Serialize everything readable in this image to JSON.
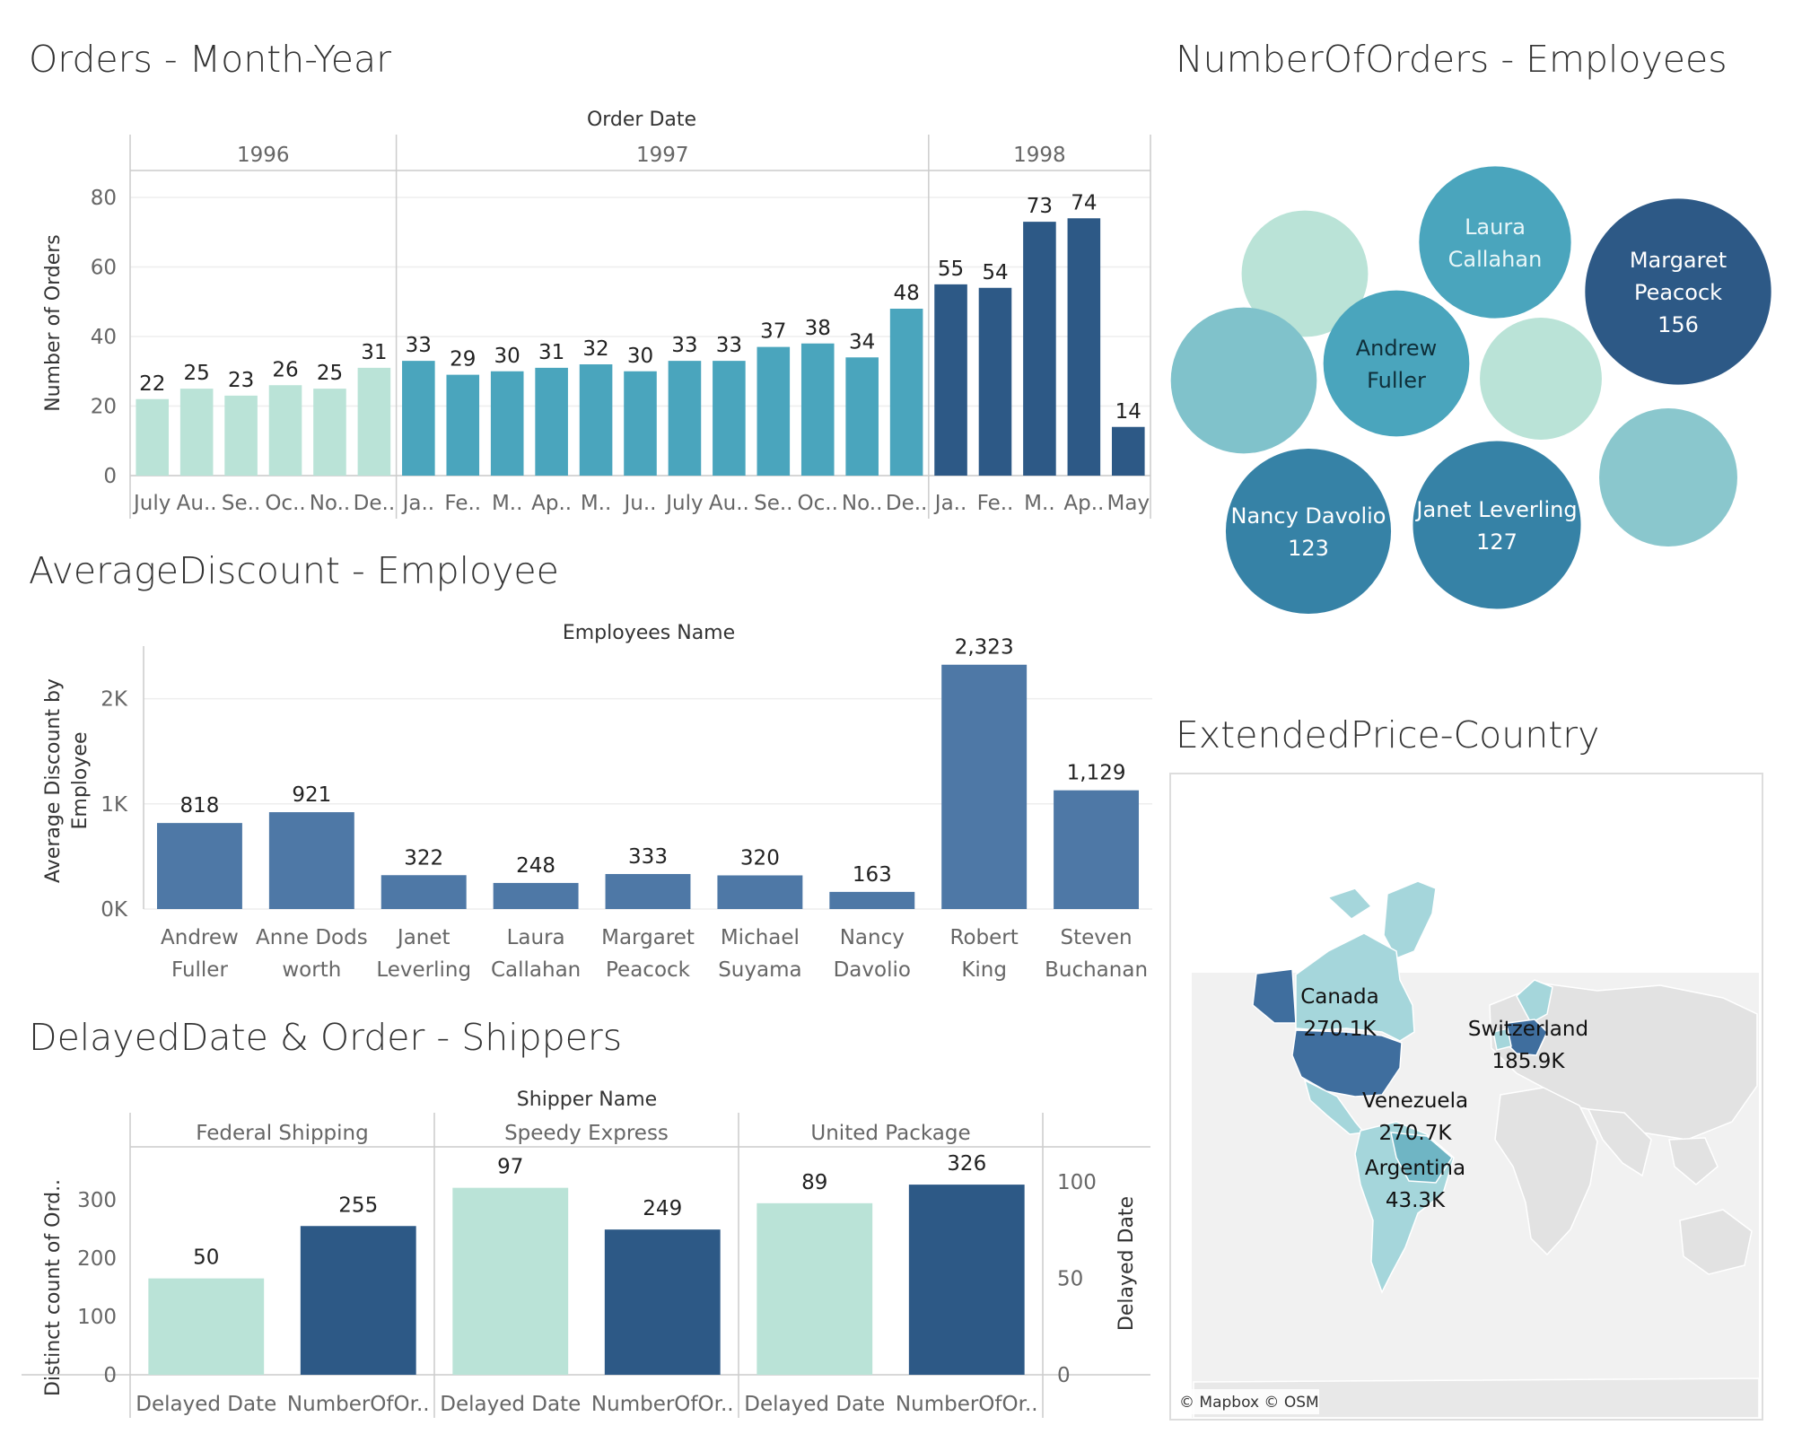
{
  "colors": {
    "light": "#bae3d7",
    "mid": "#4aa5bd",
    "dark": "#2d5986",
    "steel": "#4e78a6",
    "grid": "#eeeeee",
    "axis": "#cccccc"
  },
  "chart_data": [
    {
      "type": "bar",
      "title": "Orders - Month-Year",
      "xlabel": "Order Date",
      "ylabel": "Number of Orders",
      "ylim": [
        0,
        80
      ],
      "yticks": [
        0,
        20,
        40,
        60,
        80
      ],
      "grid": true,
      "groups": [
        {
          "name": "1996",
          "color": "#bae3d7",
          "categories": [
            "July",
            "Au..",
            "Se..",
            "Oc..",
            "No..",
            "De.."
          ],
          "values": [
            22,
            25,
            23,
            26,
            25,
            31
          ]
        },
        {
          "name": "1997",
          "color": "#4aa5bd",
          "categories": [
            "Ja..",
            "Fe..",
            "M..",
            "Ap..",
            "M..",
            "Ju..",
            "July",
            "Au..",
            "Se..",
            "Oc..",
            "No..",
            "De.."
          ],
          "values": [
            33,
            29,
            30,
            31,
            32,
            30,
            33,
            33,
            37,
            38,
            34,
            48
          ]
        },
        {
          "name": "1998",
          "color": "#2d5986",
          "categories": [
            "Ja..",
            "Fe..",
            "M..",
            "Ap..",
            "May"
          ],
          "values": [
            55,
            54,
            73,
            74,
            14
          ]
        }
      ]
    },
    {
      "type": "bubble",
      "title": "NumberOfOrders - Employees",
      "bubbles": [
        {
          "name": "",
          "value": 72,
          "label": "",
          "color": "#bae3d7"
        },
        {
          "name": "Laura\nCallahan",
          "value": 104,
          "label": "",
          "color": "#4aa5bd"
        },
        {
          "name": "Margaret\nPeacock",
          "value": 156,
          "label": "156",
          "color": "#2d5986"
        },
        {
          "name": "",
          "value": 96,
          "label": "",
          "color": "#80c2cb"
        },
        {
          "name": "Andrew\nFuller",
          "value": 96,
          "label": "",
          "color": "#4aa5bd"
        },
        {
          "name": "",
          "value": 67,
          "label": "",
          "color": "#bae3d7"
        },
        {
          "name": "",
          "value": 86,
          "label": "",
          "color": "#8ac7cd"
        },
        {
          "name": "Nancy Davolio",
          "value": 123,
          "label": "123",
          "color": "#3682a6"
        },
        {
          "name": "Janet Leverling",
          "value": 127,
          "label": "127",
          "color": "#3682a6"
        }
      ]
    },
    {
      "type": "bar",
      "title": "AverageDiscount - Employee",
      "xlabel": "Employees Name",
      "ylabel": "Average Discount by Employee",
      "ylim": [
        0,
        2500
      ],
      "yticks": [
        0,
        1000,
        2000
      ],
      "ytick_labels": [
        "0K",
        "1K",
        "2K"
      ],
      "categories": [
        "Andrew Fuller",
        "Anne Dods worth",
        "Janet Leverling",
        "Laura Callahan",
        "Margaret Peacock",
        "Michael Suyama",
        "Nancy Davolio",
        "Robert King",
        "Steven Buchanan"
      ],
      "category_lines": [
        [
          "Andrew",
          "Fuller"
        ],
        [
          "Anne Dods",
          "worth"
        ],
        [
          "Janet",
          "Leverling"
        ],
        [
          "Laura",
          "Callahan"
        ],
        [
          "Margaret",
          "Peacock"
        ],
        [
          "Michael",
          "Suyama"
        ],
        [
          "Nancy",
          "Davolio"
        ],
        [
          "Robert",
          "King"
        ],
        [
          "Steven",
          "Buchanan"
        ]
      ],
      "values": [
        818,
        921,
        322,
        248,
        333,
        320,
        163,
        2323,
        1129
      ],
      "value_labels": [
        "818",
        "921",
        "322",
        "248",
        "333",
        "320",
        "163",
        "2,323",
        "1,129"
      ],
      "color": "#4e78a6"
    },
    {
      "type": "bar",
      "title": "DelayedDate & Order - Shippers",
      "xlabel": "Shipper Name",
      "ylabel_left": "Distinct count of Ord..",
      "ylabel_right": "Delayed Date",
      "ylim_left": [
        0,
        380
      ],
      "yticks_left": [
        0,
        100,
        200,
        300
      ],
      "ylim_right": [
        0,
        115
      ],
      "yticks_right": [
        0,
        50,
        100
      ],
      "categories": [
        "Federal Shipping",
        "Speedy Express",
        "United Package"
      ],
      "measure_labels": [
        "Delayed Date",
        "NumberOfOr.."
      ],
      "series": [
        {
          "name": "Delayed Date",
          "axis": "right",
          "color": "#bae3d7",
          "values": [
            50,
            97,
            89
          ]
        },
        {
          "name": "NumberOfOrders",
          "axis": "left",
          "color": "#2d5986",
          "values": [
            255,
            249,
            326
          ]
        }
      ]
    },
    {
      "type": "map",
      "title": "ExtendedPrice-Country",
      "labels": [
        {
          "country": "Canada",
          "value": "270.1K"
        },
        {
          "country": "Switzerland",
          "value": "185.9K"
        },
        {
          "country": "Venezuela",
          "value": "270.7K"
        },
        {
          "country": "Argentina",
          "value": "43.3K"
        }
      ],
      "credit": "© Mapbox © OSM"
    }
  ]
}
